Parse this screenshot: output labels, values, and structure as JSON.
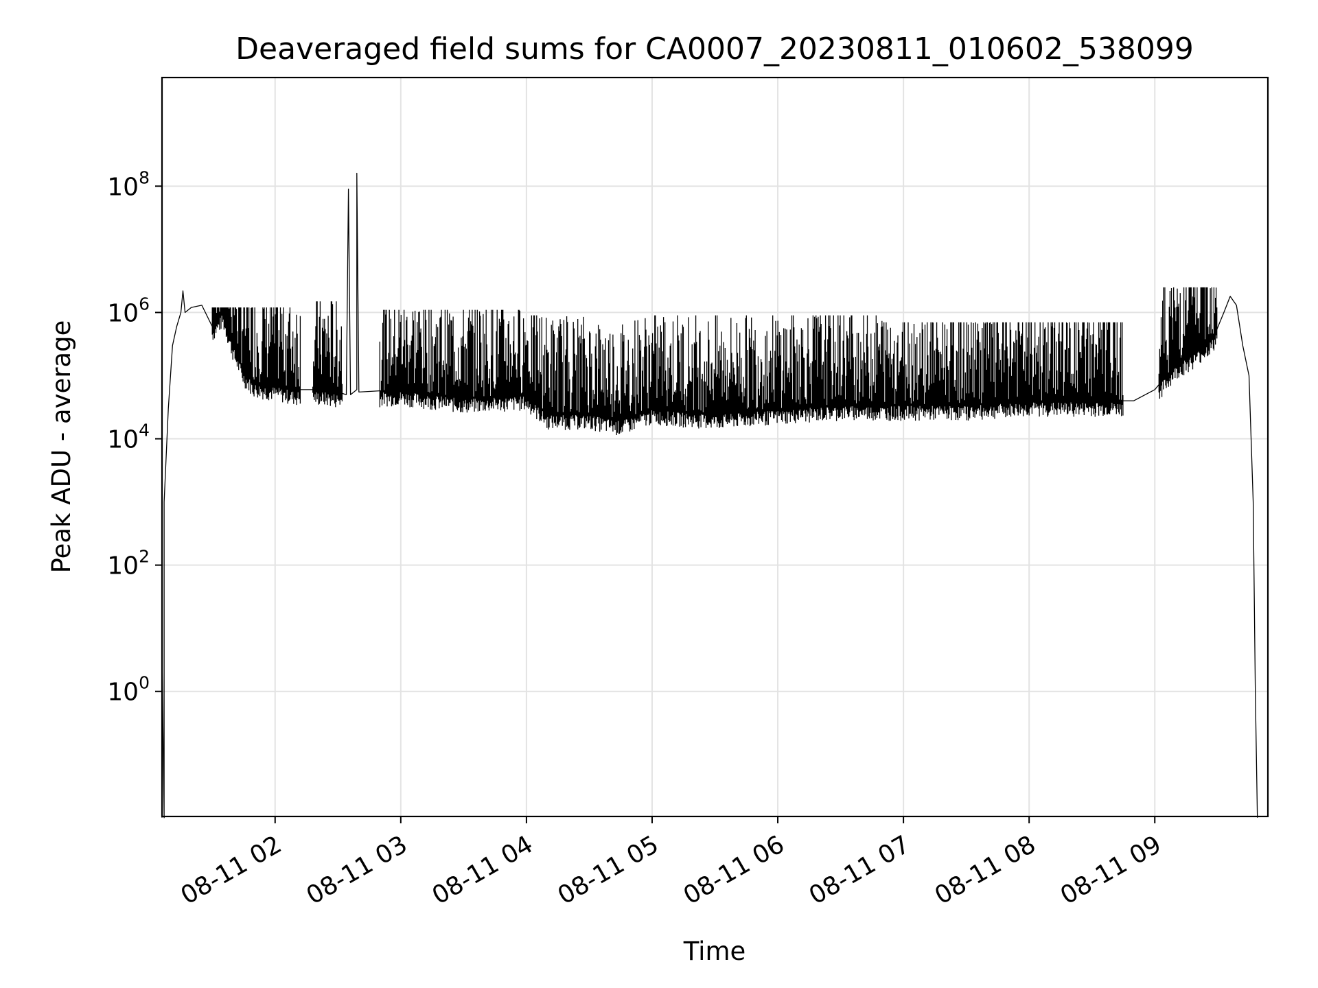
{
  "chart_data": {
    "type": "line",
    "title": "Deaveraged field sums for CA0007_20230811_010602_538099",
    "xlabel": "Time",
    "ylabel": "Peak ADU - average",
    "yscale": "log",
    "grid": true,
    "xlim": [
      "2023-08-11 01:06",
      "2023-08-11 09:54"
    ],
    "ylim_log10": [
      -1.98,
      9.72
    ],
    "x_ticks": [
      {
        "value": "2023-08-11 02:00",
        "label": "08-11 02"
      },
      {
        "value": "2023-08-11 03:00",
        "label": "08-11 03"
      },
      {
        "value": "2023-08-11 04:00",
        "label": "08-11 04"
      },
      {
        "value": "2023-08-11 05:00",
        "label": "08-11 05"
      },
      {
        "value": "2023-08-11 06:00",
        "label": "08-11 06"
      },
      {
        "value": "2023-08-11 07:00",
        "label": "08-11 07"
      },
      {
        "value": "2023-08-11 08:00",
        "label": "08-11 08"
      },
      {
        "value": "2023-08-11 09:00",
        "label": "08-11 09"
      }
    ],
    "y_ticks": [
      {
        "exp": 0,
        "base": "10",
        "sup": "0"
      },
      {
        "exp": 2,
        "base": "10",
        "sup": "2"
      },
      {
        "exp": 4,
        "base": "10",
        "sup": "4"
      },
      {
        "exp": 6,
        "base": "10",
        "sup": "6"
      },
      {
        "exp": 8,
        "base": "10",
        "sup": "8"
      }
    ],
    "series": [
      {
        "points": [
          [
            "2023-08-11 01:06",
            0.01
          ],
          [
            "2023-08-11 01:06",
            4
          ],
          [
            "2023-08-11 01:07",
            0.01
          ],
          [
            "2023-08-11 01:07",
            1000
          ],
          [
            "2023-08-11 01:09",
            30000
          ],
          [
            "2023-08-11 01:11",
            300000
          ],
          [
            "2023-08-11 01:13",
            600000
          ],
          [
            "2023-08-11 01:15",
            1000000
          ],
          [
            "2023-08-11 01:16",
            2200000
          ],
          [
            "2023-08-11 01:17",
            1000000
          ],
          [
            "2023-08-11 01:20",
            1200000
          ],
          [
            "2023-08-11 01:25",
            1300000
          ],
          [
            "2023-08-11 01:30",
            600000
          ],
          [
            "2023-08-11 01:35",
            1000000
          ],
          [
            "2023-08-11 01:40",
            300000
          ],
          [
            "2023-08-11 01:45",
            120000
          ],
          [
            "2023-08-11 01:50",
            80000
          ],
          [
            "2023-08-11 02:00",
            70000
          ],
          [
            "2023-08-11 02:10",
            60000
          ],
          [
            "2023-08-11 02:20",
            60000
          ],
          [
            "2023-08-11 02:30",
            55000
          ],
          [
            "2023-08-11 02:34",
            50000
          ],
          [
            "2023-08-11 02:35",
            90000000
          ],
          [
            "2023-08-11 02:36",
            50000
          ],
          [
            "2023-08-11 02:39",
            60000
          ],
          [
            "2023-08-11 02:39",
            160000000
          ],
          [
            "2023-08-11 02:40",
            55000
          ],
          [
            "2023-08-11 03:00",
            60000
          ],
          [
            "2023-08-11 03:30",
            45000
          ],
          [
            "2023-08-11 04:00",
            50000
          ],
          [
            "2023-08-11 04:10",
            25000
          ],
          [
            "2023-08-11 04:30",
            25000
          ],
          [
            "2023-08-11 04:45",
            20000
          ],
          [
            "2023-08-11 05:00",
            30000
          ],
          [
            "2023-08-11 05:30",
            25000
          ],
          [
            "2023-08-11 06:00",
            30000
          ],
          [
            "2023-08-11 06:30",
            35000
          ],
          [
            "2023-08-11 07:00",
            35000
          ],
          [
            "2023-08-11 07:30",
            35000
          ],
          [
            "2023-08-11 08:00",
            40000
          ],
          [
            "2023-08-11 08:30",
            40000
          ],
          [
            "2023-08-11 08:50",
            40000
          ],
          [
            "2023-08-11 09:00",
            60000
          ],
          [
            "2023-08-11 09:10",
            150000
          ],
          [
            "2023-08-11 09:20",
            250000
          ],
          [
            "2023-08-11 09:28",
            400000
          ],
          [
            "2023-08-11 09:33",
            1000000
          ],
          [
            "2023-08-11 09:36",
            1800000
          ],
          [
            "2023-08-11 09:39",
            1300000
          ],
          [
            "2023-08-11 09:42",
            300000
          ],
          [
            "2023-08-11 09:45",
            100000
          ],
          [
            "2023-08-11 09:47",
            1000
          ],
          [
            "2023-08-11 09:48",
            1
          ],
          [
            "2023-08-11 09:49",
            0.01
          ]
        ],
        "noise_spikes": [
          {
            "from": "2023-08-11 01:30",
            "to": "2023-08-11 02:12",
            "peak": 1200000
          },
          {
            "from": "2023-08-11 02:18",
            "to": "2023-08-11 02:32",
            "peak": 1500000
          },
          {
            "from": "2023-08-11 02:50",
            "to": "2023-08-11 04:00",
            "peak": 1100000
          },
          {
            "from": "2023-08-11 04:00",
            "to": "2023-08-11 05:10",
            "peak": 900000
          },
          {
            "from": "2023-08-11 05:10",
            "to": "2023-08-11 06:50",
            "peak": 900000
          },
          {
            "from": "2023-08-11 06:50",
            "to": "2023-08-11 08:45",
            "peak": 700000
          },
          {
            "from": "2023-08-11 09:02",
            "to": "2023-08-11 09:30",
            "peak": 2500000
          }
        ]
      }
    ]
  }
}
